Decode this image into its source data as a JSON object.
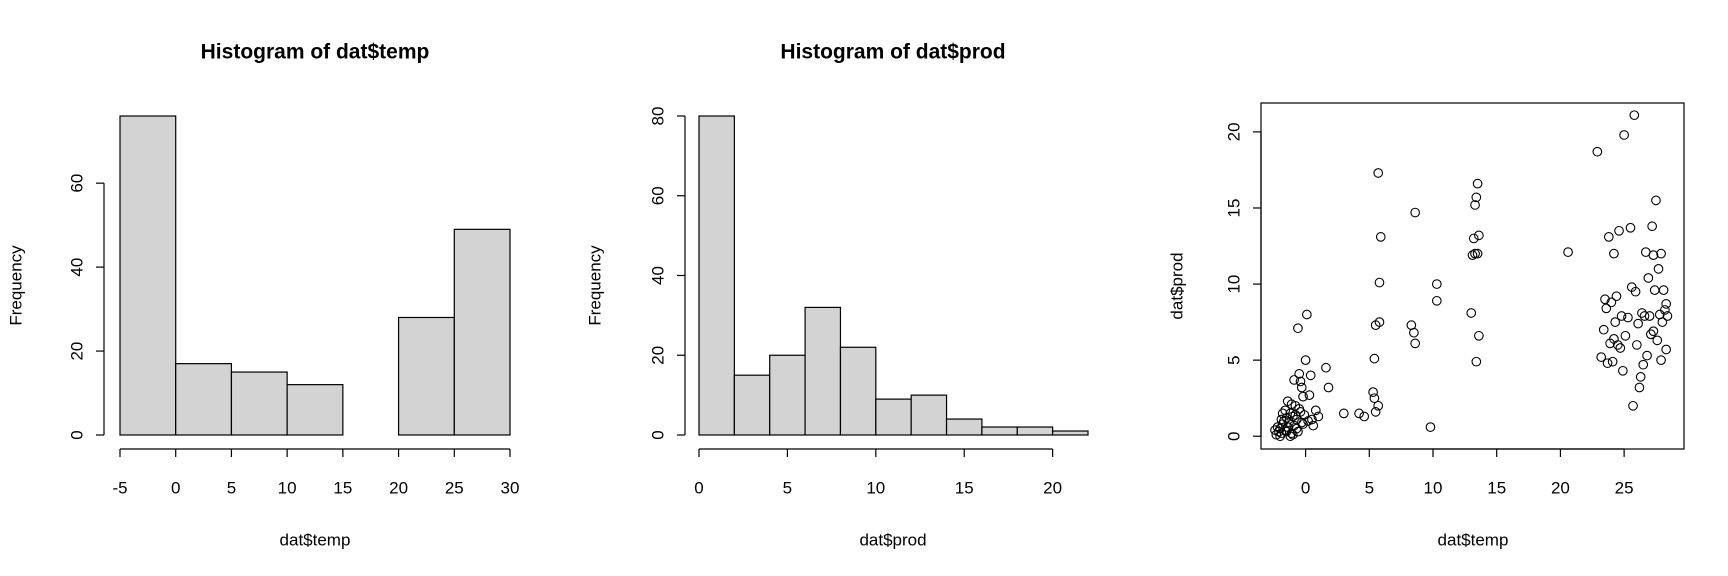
{
  "chart_data": [
    {
      "type": "histogram",
      "title": "Histogram of dat$temp",
      "xlabel": "dat$temp",
      "ylabel": "Frequency",
      "bins": [
        -5,
        0,
        5,
        10,
        15,
        20,
        25,
        30
      ],
      "values": [
        76,
        17,
        15,
        12,
        0,
        28,
        49
      ],
      "color": "#d3d3d3",
      "xlim": [
        -5,
        30
      ],
      "ylim": [
        0,
        76
      ],
      "xticks": [
        -5,
        0,
        5,
        10,
        15,
        20,
        25,
        30
      ],
      "yticks": [
        0,
        20,
        40,
        60
      ]
    },
    {
      "type": "histogram",
      "title": "Histogram of dat$prod",
      "xlabel": "dat$prod",
      "ylabel": "Frequency",
      "bins": [
        0,
        2,
        4,
        6,
        8,
        10,
        12,
        14,
        16,
        18,
        20,
        22
      ],
      "values": [
        80,
        15,
        20,
        32,
        22,
        9,
        10,
        4,
        2,
        2,
        1
      ],
      "color": "#d3d3d3",
      "xlim": [
        0,
        22
      ],
      "ylim": [
        0,
        80
      ],
      "xticks": [
        0,
        5,
        10,
        15,
        20
      ],
      "yticks": [
        0,
        20,
        40,
        60,
        80
      ]
    },
    {
      "type": "scatter",
      "xlabel": "dat$temp",
      "ylabel": "dat$prod",
      "x": [
        -2.3,
        -2.1,
        -2.0,
        -1.9,
        -1.8,
        -1.7,
        -1.6,
        -1.5,
        -1.4,
        -1.3,
        -1.2,
        -1.1,
        -1.0,
        -0.9,
        -0.8,
        -0.7,
        -0.6,
        -0.5,
        -0.4,
        -0.3,
        -0.2,
        -0.1,
        0,
        0.1,
        0.2,
        0.4,
        0.6,
        0.8,
        1.0,
        -0.6,
        -0.9,
        -0.5,
        -1.8,
        -2.2,
        -1.9,
        -1.4,
        -1.0,
        -0.7,
        -0.3,
        0.3,
        -2.4,
        -1.6,
        -1.2,
        -0.8,
        -0.2,
        0.5,
        -2.0,
        -1.5,
        -1.1,
        -0.4,
        5.3,
        5.4,
        5.5,
        5.7,
        5.4,
        5.5,
        5.8,
        5.8,
        5.9,
        5.7,
        4.2,
        4.6,
        3.0,
        1.6,
        1.8,
        8.3,
        8.5,
        8.6,
        8.6,
        9.8,
        10.3,
        10.3,
        13.0,
        13.1,
        13.3,
        13.2,
        13.3,
        13.4,
        13.5,
        13.4,
        13.6,
        13.6,
        13.5,
        20.6,
        23.2,
        23.4,
        23.6,
        23.7,
        23.8,
        23.9,
        24.0,
        24.1,
        24.2,
        24.3,
        24.4,
        24.5,
        24.6,
        24.7,
        24.8,
        24.9,
        25.0,
        25.1,
        25.3,
        25.5,
        25.6,
        25.7,
        25.8,
        25.9,
        26.0,
        26.1,
        26.2,
        26.3,
        26.5,
        26.6,
        26.7,
        26.8,
        26.9,
        27.0,
        27.1,
        27.2,
        27.3,
        27.4,
        27.5,
        27.6,
        27.7,
        27.8,
        27.9,
        28.0,
        28.1,
        28.2,
        28.3,
        28.4,
        22.9,
        23.5,
        27.3,
        26.4,
        27.9,
        28.3,
        24.2
      ],
      "y": [
        0.1,
        0.3,
        0.5,
        0.2,
        0.8,
        1.0,
        0.4,
        1.2,
        0.6,
        0.9,
        1.5,
        0.2,
        1.3,
        0.7,
        2.0,
        1.1,
        0.3,
        1.8,
        3.6,
        0.9,
        2.6,
        1.4,
        5.0,
        8.0,
        1.0,
        4.0,
        0.7,
        1.7,
        1.3,
        7.1,
        3.7,
        4.1,
        1.5,
        0.6,
        1.1,
        2.3,
        0.1,
        0.5,
        3.2,
        2.7,
        0.4,
        1.7,
        0.0,
        1.4,
        0.8,
        1.1,
        0.0,
        0.3,
        2.1,
        1.6,
        2.9,
        2.5,
        1.6,
        2.0,
        5.1,
        7.3,
        7.5,
        10.1,
        13.1,
        17.3,
        1.5,
        1.3,
        1.5,
        4.5,
        3.2,
        7.3,
        6.8,
        6.1,
        14.7,
        0.6,
        10.0,
        8.9,
        8.1,
        11.9,
        12.0,
        13.0,
        15.2,
        15.7,
        16.6,
        4.9,
        6.6,
        13.2,
        12.0,
        12.1,
        5.2,
        7.0,
        8.4,
        4.8,
        13.1,
        6.1,
        8.8,
        4.9,
        12.0,
        7.5,
        9.2,
        6.0,
        13.5,
        5.8,
        7.9,
        4.3,
        19.8,
        6.6,
        7.8,
        13.7,
        9.8,
        2.0,
        21.1,
        9.5,
        6.0,
        7.4,
        3.2,
        3.9,
        4.7,
        7.9,
        12.1,
        5.3,
        10.4,
        7.9,
        6.7,
        13.8,
        11.9,
        9.6,
        15.5,
        6.3,
        11.0,
        8.0,
        5.0,
        7.5,
        9.6,
        8.3,
        5.7,
        7.9,
        18.7,
        9.0,
        6.9,
        8.1,
        12.0,
        8.7,
        6.4
      ],
      "xlim": [
        -3.5,
        29.7
      ],
      "ylim": [
        -0.84,
        21.9
      ],
      "xticks": [
        0,
        5,
        10,
        15,
        20,
        25
      ],
      "yticks": [
        0,
        5,
        10,
        15,
        20
      ]
    }
  ]
}
